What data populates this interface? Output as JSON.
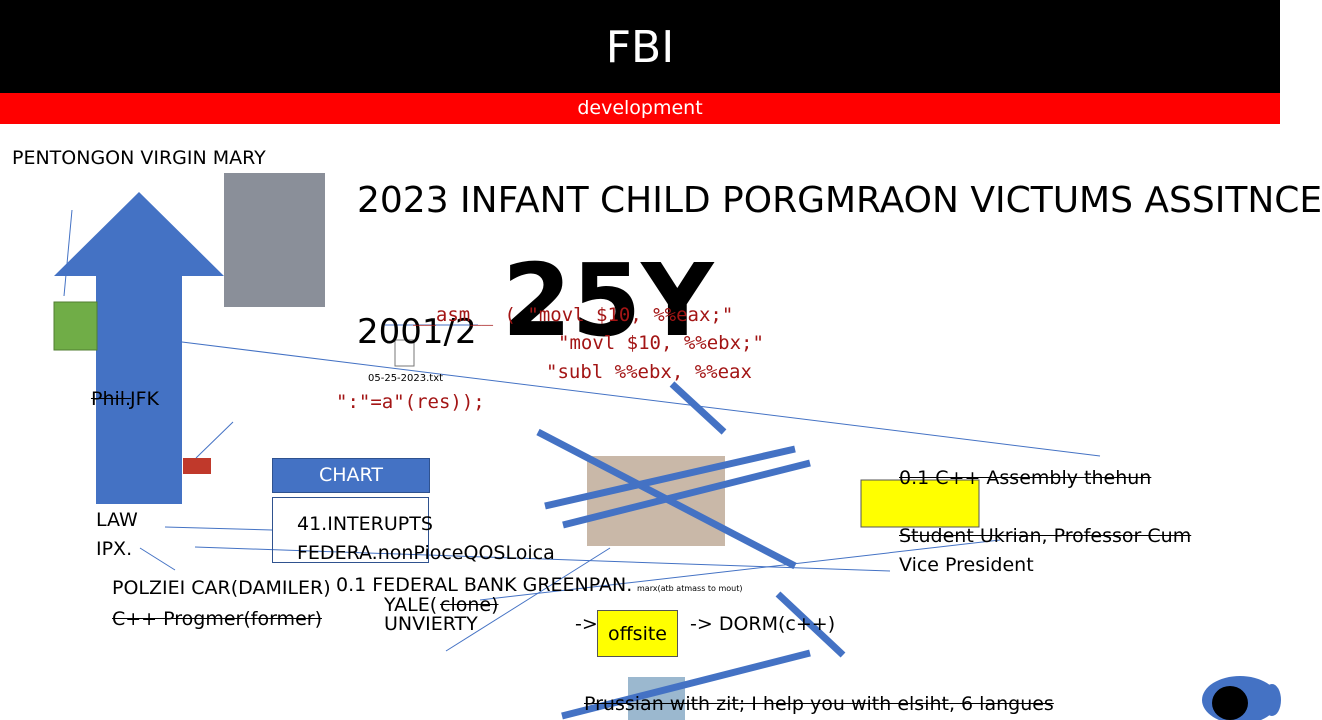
{
  "header": {
    "title": "FBI",
    "subtitle": "development"
  },
  "texts": {
    "top_left": "PENTONGON VIRGIN MARY",
    "headline": "2023 INFANT CHILD PORGMRAON VICTUMS ASSITNCE",
    "big": "25Y",
    "year": "2001/2",
    "code": [
      "__asm__ ( \"movl $10, %%eax;\"",
      "\"movl $10, %%ebx;\"",
      "\"subl %%ebx, %%eax",
      "\":\"=a\"(res));"
    ],
    "file_name": "05-25-2023.txt",
    "phil_struck": "Phil.",
    "phil_rest": "JFK",
    "chart_button": "CHART",
    "box_lines": [
      "41.INTERUPTS",
      "FEDERA.nonPioceQOSLoica"
    ],
    "law": "LAW",
    "ipx": "IPX.",
    "car": "POLZIEI CAR(DAMILER)",
    "former": "C++ Progmer(former)",
    "bank": "0.1 FEDERAL BANK GREENPAN.",
    "bank_small": "marx(atb atmass to mout)",
    "yale": "YALE(",
    "yale_struck": "clone)",
    "univ": "UNVIERTY",
    "arrow1": "->",
    "offsite": "offsite",
    "dorm": "->  DORM(c++)",
    "assembly": "0.1 C++ Assembly thehun",
    "student": "Student Ukrian, Professor Cum",
    "vp": "Vice President",
    "bottom": "Prussian with zit; I help you with elsiht, 6 langues"
  }
}
